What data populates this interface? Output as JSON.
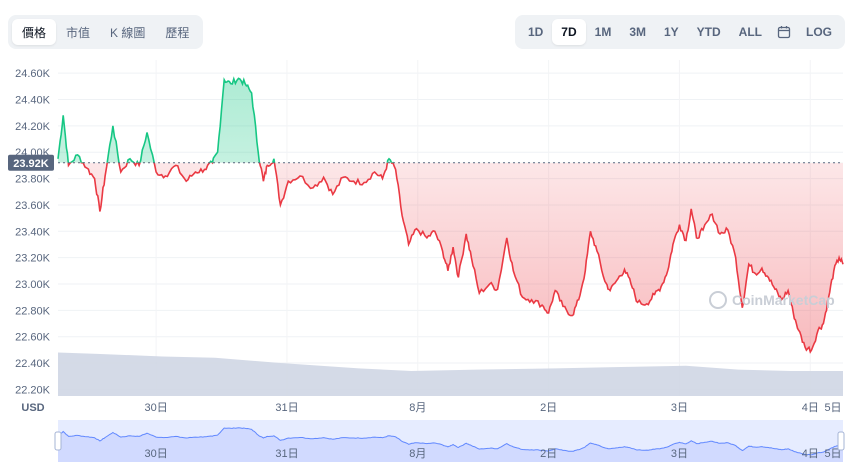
{
  "toolbar": {
    "left_tabs": [
      {
        "label": "價格",
        "active": true
      },
      {
        "label": "市值",
        "active": false
      },
      {
        "label": "K 線圖",
        "active": false
      },
      {
        "label": "歷程",
        "active": false
      }
    ],
    "range_buttons": [
      {
        "label": "1D",
        "active": false
      },
      {
        "label": "7D",
        "active": true
      },
      {
        "label": "1M",
        "active": false
      },
      {
        "label": "3M",
        "active": false
      },
      {
        "label": "1Y",
        "active": false
      },
      {
        "label": "YTD",
        "active": false
      },
      {
        "label": "ALL",
        "active": false
      }
    ],
    "calendar_icon": "calendar-icon",
    "log_label": "LOG"
  },
  "watermark": "CoinMarketCap",
  "colors": {
    "up": "#16c784",
    "down": "#ea3943",
    "volume": "#cfd6e4",
    "baseline": "#58667e",
    "nav": "#6188ff"
  },
  "chart_data": {
    "type": "line",
    "yunit": "USD",
    "y_ticks": [
      "22.20K",
      "22.40K",
      "22.60K",
      "22.80K",
      "23.00K",
      "23.20K",
      "23.40K",
      "23.60K",
      "23.80K",
      "24.00K",
      "24.20K",
      "24.40K",
      "24.60K"
    ],
    "ylim": [
      22150,
      24700
    ],
    "baseline": {
      "value": 23920,
      "label": "23.92K"
    },
    "x_ticks": [
      "30日",
      "31日",
      "8月",
      "2日",
      "3日",
      "4日",
      "5日"
    ],
    "xlim": [
      0,
      6.65
    ],
    "x_tick_positions": [
      0.75,
      1.75,
      2.75,
      3.75,
      4.75,
      5.75,
      6.75
    ],
    "grid": true,
    "price_keypoints": [
      [
        0.0,
        23950
      ],
      [
        0.04,
        24280
      ],
      [
        0.08,
        23900
      ],
      [
        0.15,
        23980
      ],
      [
        0.22,
        23880
      ],
      [
        0.28,
        23800
      ],
      [
        0.32,
        23550
      ],
      [
        0.36,
        23820
      ],
      [
        0.42,
        24200
      ],
      [
        0.48,
        23850
      ],
      [
        0.55,
        23950
      ],
      [
        0.62,
        23900
      ],
      [
        0.68,
        24150
      ],
      [
        0.75,
        23850
      ],
      [
        0.82,
        23820
      ],
      [
        0.9,
        23900
      ],
      [
        0.98,
        23780
      ],
      [
        1.05,
        23850
      ],
      [
        1.12,
        23870
      ],
      [
        1.18,
        23920
      ],
      [
        1.22,
        24000
      ],
      [
        1.27,
        24550
      ],
      [
        1.32,
        24520
      ],
      [
        1.38,
        24560
      ],
      [
        1.43,
        24520
      ],
      [
        1.48,
        24450
      ],
      [
        1.53,
        24000
      ],
      [
        1.57,
        23780
      ],
      [
        1.6,
        23900
      ],
      [
        1.65,
        23950
      ],
      [
        1.7,
        23600
      ],
      [
        1.76,
        23780
      ],
      [
        1.85,
        23820
      ],
      [
        1.95,
        23730
      ],
      [
        2.03,
        23810
      ],
      [
        2.1,
        23680
      ],
      [
        2.18,
        23810
      ],
      [
        2.26,
        23780
      ],
      [
        2.34,
        23770
      ],
      [
        2.42,
        23850
      ],
      [
        2.48,
        23800
      ],
      [
        2.53,
        23950
      ],
      [
        2.58,
        23870
      ],
      [
        2.63,
        23520
      ],
      [
        2.68,
        23300
      ],
      [
        2.74,
        23420
      ],
      [
        2.82,
        23350
      ],
      [
        2.88,
        23400
      ],
      [
        2.94,
        23250
      ],
      [
        2.98,
        23100
      ],
      [
        3.02,
        23280
      ],
      [
        3.06,
        23050
      ],
      [
        3.12,
        23380
      ],
      [
        3.16,
        23200
      ],
      [
        3.22,
        22930
      ],
      [
        3.3,
        23000
      ],
      [
        3.36,
        22960
      ],
      [
        3.43,
        23350
      ],
      [
        3.48,
        23100
      ],
      [
        3.55,
        22900
      ],
      [
        3.62,
        22880
      ],
      [
        3.7,
        22840
      ],
      [
        3.75,
        22780
      ],
      [
        3.8,
        22950
      ],
      [
        3.86,
        22830
      ],
      [
        3.93,
        22760
      ],
      [
        3.98,
        22880
      ],
      [
        4.03,
        23100
      ],
      [
        4.07,
        23400
      ],
      [
        4.12,
        23250
      ],
      [
        4.18,
        23020
      ],
      [
        4.22,
        22950
      ],
      [
        4.28,
        23040
      ],
      [
        4.33,
        23110
      ],
      [
        4.38,
        23000
      ],
      [
        4.43,
        22860
      ],
      [
        4.5,
        22850
      ],
      [
        4.56,
        22920
      ],
      [
        4.61,
        22980
      ],
      [
        4.66,
        23100
      ],
      [
        4.7,
        23300
      ],
      [
        4.75,
        23450
      ],
      [
        4.8,
        23330
      ],
      [
        4.84,
        23570
      ],
      [
        4.88,
        23350
      ],
      [
        4.93,
        23410
      ],
      [
        5.0,
        23530
      ],
      [
        5.06,
        23380
      ],
      [
        5.12,
        23410
      ],
      [
        5.18,
        23200
      ],
      [
        5.23,
        22820
      ],
      [
        5.28,
        23150
      ],
      [
        5.33,
        23080
      ],
      [
        5.38,
        23120
      ],
      [
        5.43,
        23050
      ],
      [
        5.48,
        22960
      ],
      [
        5.53,
        22880
      ],
      [
        5.58,
        22950
      ],
      [
        5.62,
        22780
      ],
      [
        5.66,
        22650
      ],
      [
        5.71,
        22520
      ],
      [
        5.76,
        22500
      ],
      [
        5.81,
        22650
      ],
      [
        5.85,
        22700
      ],
      [
        5.89,
        22900
      ],
      [
        5.93,
        23100
      ],
      [
        5.97,
        23200
      ],
      [
        6.0,
        23150
      ]
    ],
    "volume_keypoints": [
      [
        0.0,
        22480
      ],
      [
        0.3,
        22470
      ],
      [
        0.8,
        22450
      ],
      [
        1.2,
        22440
      ],
      [
        1.7,
        22400
      ],
      [
        2.3,
        22360
      ],
      [
        2.7,
        22340
      ],
      [
        3.2,
        22350
      ],
      [
        3.8,
        22360
      ],
      [
        4.3,
        22370
      ],
      [
        4.8,
        22380
      ],
      [
        5.2,
        22350
      ],
      [
        5.6,
        22340
      ],
      [
        6.0,
        22340
      ]
    ]
  }
}
